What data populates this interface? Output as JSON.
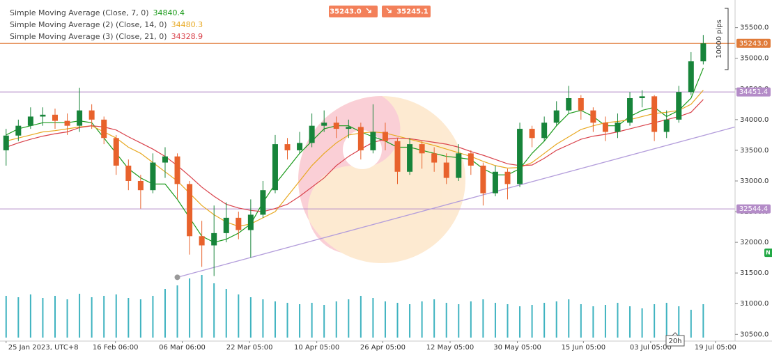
{
  "chart_data": {
    "type": "candlestick",
    "xlim": [
      -0.5,
      59.6
    ],
    "ylim": [
      30390,
      35950
    ],
    "yticks": [
      {
        "value": 35500,
        "label": "35500.0"
      },
      {
        "value": 35000,
        "label": "35000.0"
      },
      {
        "value": 34500,
        "label": "34500.0"
      },
      {
        "value": 34000,
        "label": "34000.0"
      },
      {
        "value": 33500,
        "label": "33500.0"
      },
      {
        "value": 33000,
        "label": "33000.0"
      },
      {
        "value": 32500,
        "label": "32500.0"
      },
      {
        "value": 32000,
        "label": "32000.0"
      },
      {
        "value": 31500,
        "label": "31500.0"
      },
      {
        "value": 31000,
        "label": "31000.0"
      },
      {
        "value": 30500,
        "label": "30500.0"
      }
    ],
    "xticks": [
      {
        "value": 0,
        "label": "25 Jan 2023, UTC+8"
      },
      {
        "value": 8.94,
        "label": "16 Feb 06:00"
      },
      {
        "value": 14.4,
        "label": "06 Mar 06:00"
      },
      {
        "value": 19.9,
        "label": "22 Mar 05:00"
      },
      {
        "value": 25.4,
        "label": "10 Apr 05:00"
      },
      {
        "value": 30.8,
        "label": "26 Apr 05:00"
      },
      {
        "value": 36.3,
        "label": "12 May 05:00"
      },
      {
        "value": 41.8,
        "label": "30 May 05:00"
      },
      {
        "value": 47.2,
        "label": "15 Jun 05:00"
      },
      {
        "value": 52.7,
        "label": "03 Jul 05:00"
      },
      {
        "value": 58.0,
        "label": "19 Jul 05:00"
      }
    ],
    "cursor_label": {
      "value": 54.7,
      "label": "20h"
    },
    "up_color": "#17843a",
    "down_color": "#e8622c",
    "open": [
      33500,
      33740,
      33900,
      34050,
      34080,
      33980,
      33900,
      34150,
      34000,
      33700,
      33250,
      33000,
      32850,
      33300,
      33400,
      32950,
      32100,
      31950,
      32150,
      32400,
      32200,
      32450,
      32850,
      33600,
      33500,
      33620,
      33900,
      33950,
      33850,
      33880,
      33500,
      33800,
      33650,
      33150,
      33600,
      33450,
      33300,
      33050,
      33450,
      33250,
      32800,
      33150,
      32950,
      33850,
      33700,
      33950,
      34150,
      34350,
      34150,
      33950,
      33800,
      33950,
      34350,
      34380,
      33800,
      34000,
      34450,
      34950
    ],
    "high": [
      33850,
      34000,
      34200,
      34200,
      34180,
      34100,
      34520,
      34250,
      34050,
      33750,
      33350,
      33100,
      33450,
      33550,
      33450,
      33000,
      32350,
      32600,
      32650,
      32500,
      32700,
      33000,
      33750,
      33700,
      33800,
      34100,
      34150,
      34050,
      34000,
      33950,
      34250,
      33950,
      33700,
      33700,
      33650,
      33550,
      33450,
      33600,
      33500,
      33300,
      33250,
      33200,
      33950,
      33900,
      34050,
      34300,
      34550,
      34400,
      34200,
      34050,
      34100,
      34450,
      34480,
      34400,
      34150,
      34550,
      35100,
      35380
    ],
    "low": [
      33250,
      33650,
      33850,
      33900,
      33850,
      33750,
      33800,
      33850,
      33600,
      33100,
      32850,
      32550,
      32800,
      33050,
      32700,
      31800,
      31600,
      31450,
      32000,
      32050,
      31750,
      32400,
      32800,
      33350,
      33450,
      33550,
      33800,
      33700,
      33700,
      33350,
      33450,
      33500,
      32950,
      33100,
      33200,
      33150,
      32950,
      33000,
      33100,
      32600,
      32750,
      32700,
      32900,
      33550,
      33650,
      33900,
      34100,
      34000,
      33800,
      33650,
      33700,
      33900,
      34200,
      33650,
      33700,
      33950,
      34400,
      34900
    ],
    "close": [
      33740,
      33900,
      34050,
      34080,
      33980,
      33900,
      34150,
      34000,
      33700,
      33250,
      33000,
      32850,
      33300,
      33400,
      32950,
      32100,
      31950,
      32150,
      32400,
      32200,
      32450,
      32850,
      33600,
      33500,
      33620,
      33900,
      33950,
      33850,
      33880,
      33500,
      33800,
      33650,
      33150,
      33600,
      33450,
      33300,
      33050,
      33450,
      33250,
      32800,
      33150,
      32950,
      33850,
      33700,
      33950,
      34150,
      34350,
      34150,
      33950,
      33800,
      33950,
      34350,
      34380,
      33800,
      34000,
      34450,
      34950,
      35243
    ],
    "series": [
      {
        "name": "Simple Moving Average (Close, 7, 0)",
        "color": "#1a9a1a",
        "values": [
          33750,
          33850,
          33900,
          33950,
          33950,
          33950,
          33980,
          33950,
          33700,
          33450,
          33200,
          33050,
          32950,
          32950,
          32700,
          32400,
          32100,
          32000,
          32050,
          32150,
          32300,
          32650,
          32950,
          33200,
          33450,
          33650,
          33850,
          33900,
          33900,
          33800,
          33720,
          33650,
          33550,
          33550,
          33500,
          33450,
          33400,
          33380,
          33350,
          33200,
          33100,
          33100,
          33200,
          33450,
          33650,
          33900,
          34100,
          34150,
          34050,
          33900,
          33900,
          34050,
          34150,
          34200,
          34050,
          34150,
          34350,
          34840.4
        ]
      },
      {
        "name": "Simple Moving Average (2) (Close, 14, 0)",
        "color": "#e8a820",
        "values": [
          33650,
          33700,
          33750,
          33800,
          33820,
          33850,
          33880,
          33900,
          33800,
          33700,
          33550,
          33450,
          33300,
          33150,
          33000,
          32800,
          32600,
          32450,
          32330,
          32260,
          32300,
          32400,
          32500,
          32750,
          33000,
          33250,
          33450,
          33620,
          33750,
          33780,
          33800,
          33780,
          33730,
          33680,
          33630,
          33580,
          33520,
          33460,
          33400,
          33320,
          33250,
          33210,
          33220,
          33300,
          33450,
          33600,
          33720,
          33840,
          33900,
          33950,
          33970,
          34000,
          34050,
          34100,
          34120,
          34150,
          34250,
          34480.3
        ]
      },
      {
        "name": "Simple Moving Average (3) (Close, 21, 0)",
        "color": "#d9414a",
        "values": [
          33550,
          33620,
          33680,
          33730,
          33770,
          33800,
          33870,
          33900,
          33880,
          33830,
          33720,
          33620,
          33520,
          33400,
          33250,
          33080,
          32900,
          32750,
          32620,
          32560,
          32520,
          32500,
          32550,
          32620,
          32750,
          32900,
          33050,
          33250,
          33400,
          33520,
          33630,
          33680,
          33700,
          33690,
          33660,
          33630,
          33600,
          33550,
          33480,
          33420,
          33350,
          33280,
          33250,
          33260,
          33370,
          33500,
          33590,
          33680,
          33730,
          33760,
          33800,
          33850,
          33900,
          33950,
          34000,
          34050,
          34120,
          34328.9
        ]
      }
    ],
    "volume": {
      "color": "#3fb3c0",
      "vlim": [
        0,
        100
      ],
      "values": [
        60,
        58,
        62,
        57,
        60,
        55,
        63,
        58,
        60,
        62,
        57,
        55,
        60,
        70,
        75,
        85,
        90,
        78,
        70,
        62,
        58,
        55,
        52,
        50,
        48,
        50,
        47,
        52,
        55,
        60,
        57,
        52,
        50,
        48,
        52,
        55,
        50,
        48,
        52,
        55,
        50,
        48,
        45,
        47,
        50,
        52,
        55,
        48,
        45,
        47,
        50,
        45,
        42,
        48,
        50,
        45,
        40,
        48
      ]
    },
    "levels": [
      {
        "value": 35243,
        "label": "35243.0",
        "color": "#e07b39"
      },
      {
        "value": 34451.4,
        "label": "34451.4",
        "color": "#b48cc8"
      },
      {
        "value": 32544.4,
        "label": "32544.4",
        "color": "#b48cc8"
      }
    ],
    "side_tag": {
      "value": 31830,
      "label": "N",
      "color": "#22a845"
    },
    "trendline": {
      "x": [
        14,
        59.6
      ],
      "y": [
        31430,
        33880
      ],
      "color": "#b39ddb"
    },
    "sell_price": "35243.0",
    "buy_price": "35245.1",
    "measure_label": "10000 pips"
  }
}
